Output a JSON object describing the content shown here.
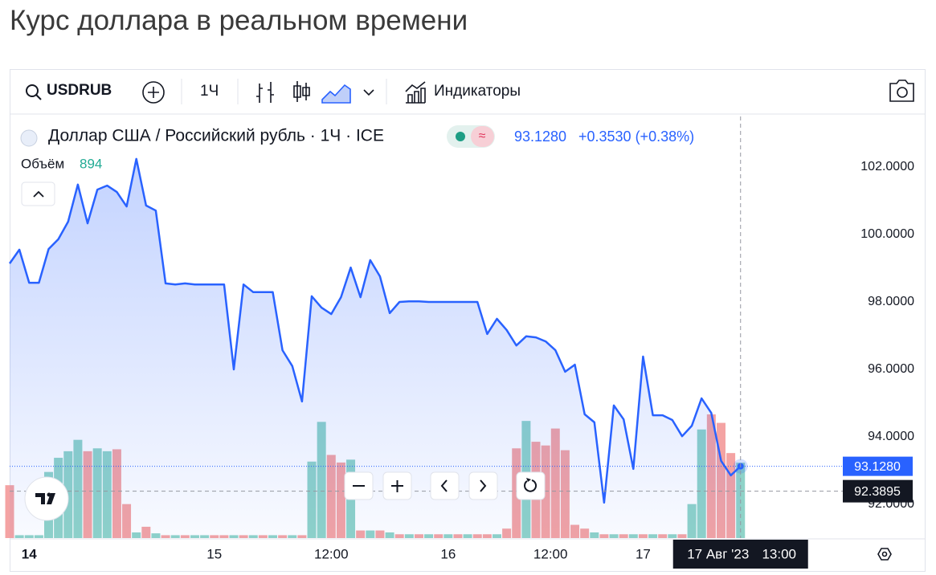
{
  "page": {
    "title": "Курс доллара в реальном времени"
  },
  "toolbar": {
    "symbol": "USDRUB",
    "interval": "1Ч",
    "indicators": "Индикаторы"
  },
  "chart_data": {
    "type": "line",
    "title": "Доллар США / Российский рубль · 1Ч · ICE",
    "legend_price": "93.1280",
    "legend_change": "+0.3530 (+0.38%)",
    "series": [
      {
        "name": "USDRUB",
        "color": "#2962ff",
        "values": [
          99.14,
          99.55,
          98.57,
          98.57,
          99.57,
          99.86,
          100.38,
          101.48,
          100.33,
          101.33,
          101.45,
          101.26,
          100.83,
          102.24,
          100.86,
          100.71,
          98.55,
          98.52,
          98.55,
          98.52,
          98.52,
          98.52,
          98.52,
          96.0,
          98.52,
          98.29,
          98.29,
          98.29,
          96.57,
          96.1,
          95.05,
          98.17,
          97.83,
          97.64,
          98.14,
          99.02,
          98.14,
          99.24,
          98.76,
          97.67,
          98.0,
          98.02,
          98.02,
          98.0,
          98.0,
          98.0,
          98.0,
          98.0,
          98.0,
          97.05,
          97.5,
          97.17,
          96.71,
          96.98,
          96.95,
          96.83,
          96.57,
          95.93,
          96.14,
          94.67,
          94.43,
          92.05,
          94.93,
          94.52,
          93.05,
          96.38,
          94.64,
          94.64,
          94.5,
          94.02,
          94.33,
          95.14,
          94.71,
          93.29,
          92.86,
          93.128
        ]
      }
    ],
    "volume": {
      "name": "Объём",
      "values": [
        627,
        34,
        34,
        34,
        784,
        952,
        1030,
        1165,
        1030,
        1064,
        1030,
        1053,
        403,
        67,
        134,
        56,
        34,
        34,
        34,
        34,
        34,
        34,
        34,
        34,
        34,
        34,
        34,
        34,
        34,
        34,
        34,
        907,
        1378,
        986,
        896,
        930,
        90,
        90,
        90,
        67,
        45,
        45,
        45,
        45,
        45,
        45,
        45,
        45,
        45,
        45,
        45,
        112,
        1064,
        1389,
        1142,
        1098,
        1299,
        1042,
        157,
        112,
        67,
        45,
        45,
        45,
        45,
        45,
        45,
        45,
        45,
        45,
        403,
        1288,
        1467,
        1366,
        1008,
        894
      ],
      "colors": [
        "#f4a3a3",
        "#8fd3c8",
        "#8fd3c8",
        "#8fd3c8",
        "#8fd3c8",
        "#8fd3c8",
        "#8fd3c8",
        "#8fd3c8",
        "#f4a3a3",
        "#8fd3c8",
        "#8fd3c8",
        "#f4a3a3",
        "#f4a3a3",
        "#8fd3c8",
        "#f4a3a3",
        "#8fd3c8",
        "#f4a3a3",
        "#8fd3c8",
        "#f4a3a3",
        "#8fd3c8",
        "#8fd3c8",
        "#f4a3a3",
        "#f4a3a3",
        "#8fd3c8",
        "#f4a3a3",
        "#8fd3c8",
        "#f4a3a3",
        "#8fd3c8",
        "#f4a3a3",
        "#8fd3c8",
        "#f4a3a3",
        "#8fd3c8",
        "#8fd3c8",
        "#f4a3a3",
        "#f4a3a3",
        "#8fd3c8",
        "#f4a3a3",
        "#8fd3c8",
        "#f4a3a3",
        "#8fd3c8",
        "#f4a3a3",
        "#8fd3c8",
        "#f4a3a3",
        "#8fd3c8",
        "#f4a3a3",
        "#8fd3c8",
        "#f4a3a3",
        "#8fd3c8",
        "#f4a3a3",
        "#f4a3a3",
        "#8fd3c8",
        "#f4a3a3",
        "#f4a3a3",
        "#8fd3c8",
        "#f4a3a3",
        "#f4a3a3",
        "#f4a3a3",
        "#f4a3a3",
        "#f4a3a3",
        "#f4a3a3",
        "#8fd3c8",
        "#f4a3a3",
        "#8fd3c8",
        "#f4a3a3",
        "#8fd3c8",
        "#f4a3a3",
        "#8fd3c8",
        "#f4a3a3",
        "#8fd3c8",
        "#f4a3a3",
        "#8fd3c8",
        "#8fd3c8",
        "#f4a3a3",
        "#f4a3a3",
        "#f4a3a3",
        "#8fd3c8"
      ],
      "ylim": [
        0,
        5000
      ]
    },
    "xlim": [
      0,
      84.75
    ],
    "xticks": [
      {
        "value": 2,
        "label": "14"
      },
      {
        "value": 21,
        "label": "15"
      },
      {
        "value": 33,
        "label": "12:00"
      },
      {
        "value": 45,
        "label": "16"
      },
      {
        "value": 55.5,
        "label": "12:00"
      },
      {
        "value": 65,
        "label": "17"
      }
    ],
    "ylim": [
      91,
      103.5
    ],
    "yticks": [
      {
        "value": 92,
        "label": "92.0000"
      },
      {
        "value": 94,
        "label": "94.0000"
      },
      {
        "value": 96,
        "label": "96.0000"
      },
      {
        "value": 98,
        "label": "98.0000"
      },
      {
        "value": 100,
        "label": "100.0000"
      },
      {
        "value": 102,
        "label": "102.0000"
      }
    ],
    "current_price": {
      "value": 93.128,
      "label": "93.1280"
    },
    "crosshair": {
      "x": 75,
      "price": {
        "value": 92.3895,
        "label": "92.3895"
      },
      "date": "17 Авг '23",
      "time": "13:00"
    }
  }
}
